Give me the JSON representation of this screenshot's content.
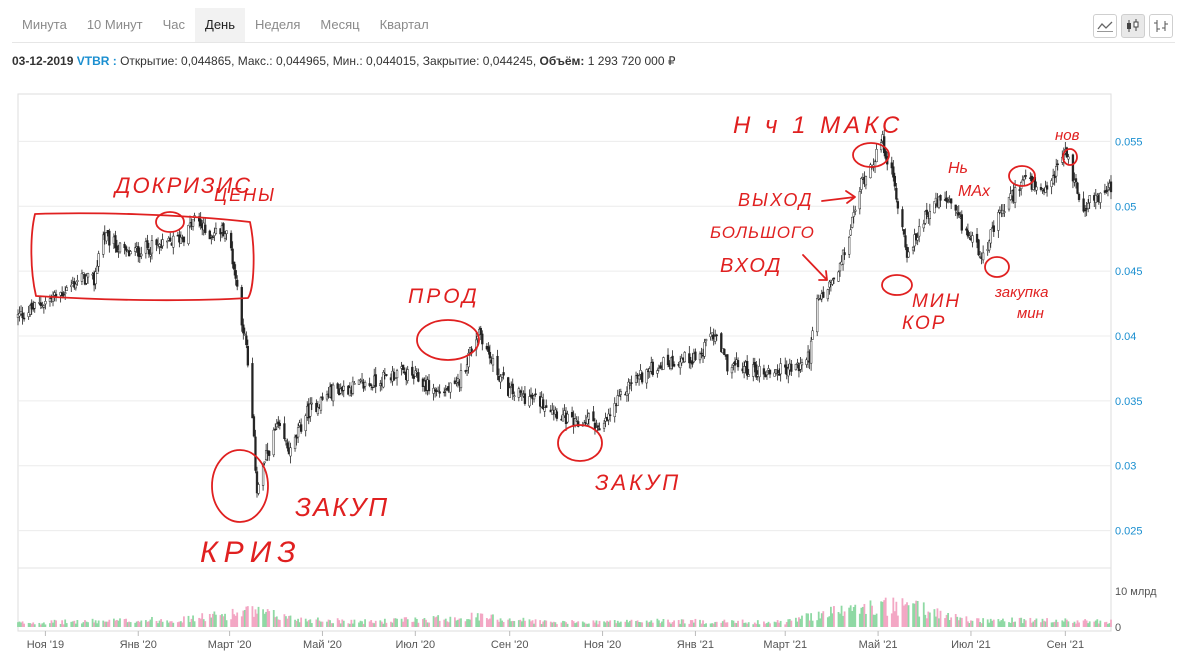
{
  "tabs": [
    "Минута",
    "10 Минут",
    "Час",
    "День",
    "Неделя",
    "Месяц",
    "Квартал"
  ],
  "active_tab": "День",
  "chart_types": [
    "line-chart-icon",
    "candlestick-chart-icon",
    "ohlc-bar-chart-icon"
  ],
  "info": {
    "date": "03-12-2019",
    "ticker": "VTBR :",
    "open_label": "Открытие:",
    "open_value": "0,044865",
    "high_label": "Макс.:",
    "high_value": "0,044965",
    "low_label": "Мин.:",
    "low_value": "0,044015",
    "close_label": "Закрытие:",
    "close_value": "0,044245",
    "volume_label": "Объём:",
    "volume_value": "1 293 720 000 ₽"
  },
  "colors": {
    "candle": "#222222",
    "volume_up": "#8fd9a4",
    "volume_down": "#f3a7c4",
    "annotation": "#e02020",
    "axis_text": "#1b8fd0",
    "grid": "#ececec"
  },
  "chart_data": {
    "type": "candlestick",
    "title": "",
    "xlabel": "",
    "ylabel": "",
    "ylim": [
      0.0225,
      0.0585
    ],
    "y_ticks": [
      "0.025",
      "0.03",
      "0.035",
      "0.04",
      "0.045",
      "0.05",
      "0.055"
    ],
    "x_ticks": [
      "Ноя '19",
      "Янв '20",
      "Март '20",
      "Май '20",
      "Июл '20",
      "Сен '20",
      "Ноя '20",
      "Янв '21",
      "Март '21",
      "Май '21",
      "Июл '21",
      "Сен '21"
    ],
    "x_tick_dates": [
      "2019-11-01",
      "2020-01-01",
      "2020-03-01",
      "2020-05-01",
      "2020-07-01",
      "2020-09-01",
      "2020-11-01",
      "2021-01-01",
      "2021-03-01",
      "2021-05-01",
      "2021-07-01",
      "2021-09-01"
    ],
    "date_range": [
      "2019-10-14",
      "2021-10-01"
    ],
    "volume_axis": {
      "labels": [
        "10 млрд",
        "0"
      ],
      "max": 13
    },
    "price_path": [
      [
        "2019-10-14",
        0.0415
      ],
      [
        "2019-11-10",
        0.0432
      ],
      [
        "2019-11-25",
        0.0445
      ],
      [
        "2019-12-03",
        0.0442
      ],
      [
        "2019-12-08",
        0.0478
      ],
      [
        "2019-12-25",
        0.0463
      ],
      [
        "2020-01-07",
        0.0468
      ],
      [
        "2020-01-17",
        0.0469
      ],
      [
        "2020-02-01",
        0.0478
      ],
      [
        "2020-02-08",
        0.0492
      ],
      [
        "2020-02-15",
        0.0478
      ],
      [
        "2020-02-26",
        0.0482
      ],
      [
        "2020-03-01",
        0.0474
      ],
      [
        "2020-03-05",
        0.0445
      ],
      [
        "2020-03-12",
        0.039
      ],
      [
        "2020-03-16",
        0.0335
      ],
      [
        "2020-03-19",
        0.0282
      ],
      [
        "2020-03-24",
        0.0303
      ],
      [
        "2020-04-01",
        0.033
      ],
      [
        "2020-04-10",
        0.031
      ],
      [
        "2020-04-20",
        0.034
      ],
      [
        "2020-05-08",
        0.0358
      ],
      [
        "2020-06-01",
        0.0363
      ],
      [
        "2020-06-20",
        0.0372
      ],
      [
        "2020-07-01",
        0.0368
      ],
      [
        "2020-07-15",
        0.0357
      ],
      [
        "2020-07-28",
        0.036
      ],
      [
        "2020-08-06",
        0.0388
      ],
      [
        "2020-08-12",
        0.0405
      ],
      [
        "2020-08-20",
        0.038
      ],
      [
        "2020-09-01",
        0.0357
      ],
      [
        "2020-09-25",
        0.0348
      ],
      [
        "2020-10-15",
        0.033
      ],
      [
        "2020-10-25",
        0.0338
      ],
      [
        "2020-10-30",
        0.0325
      ],
      [
        "2020-11-09",
        0.0345
      ],
      [
        "2020-11-20",
        0.0365
      ],
      [
        "2020-12-10",
        0.0379
      ],
      [
        "2021-01-05",
        0.0385
      ],
      [
        "2021-01-12",
        0.0403
      ],
      [
        "2021-01-22",
        0.0378
      ],
      [
        "2021-02-15",
        0.0372
      ],
      [
        "2021-03-10",
        0.0376
      ],
      [
        "2021-03-17",
        0.0385
      ],
      [
        "2021-03-22",
        0.0425
      ],
      [
        "2021-04-05",
        0.0448
      ],
      [
        "2021-04-12",
        0.0478
      ],
      [
        "2021-04-20",
        0.0518
      ],
      [
        "2021-05-04",
        0.055
      ],
      [
        "2021-05-11",
        0.052
      ],
      [
        "2021-05-21",
        0.046
      ],
      [
        "2021-06-01",
        0.0495
      ],
      [
        "2021-06-14",
        0.0506
      ],
      [
        "2021-06-26",
        0.0483
      ],
      [
        "2021-07-09",
        0.0463
      ],
      [
        "2021-07-20",
        0.0493
      ],
      [
        "2021-08-05",
        0.0522
      ],
      [
        "2021-08-18",
        0.0507
      ],
      [
        "2021-09-01",
        0.0543
      ],
      [
        "2021-09-12",
        0.05
      ],
      [
        "2021-10-01",
        0.0514
      ]
    ],
    "volume_path": [
      [
        "2019-10-14",
        1.2
      ],
      [
        "2020-02-01",
        2.2
      ],
      [
        "2020-03-15",
        4.5
      ],
      [
        "2020-04-15",
        2.3
      ],
      [
        "2020-06-01",
        1.5
      ],
      [
        "2020-08-10",
        3.0
      ],
      [
        "2020-09-30",
        1.3
      ],
      [
        "2020-12-01",
        1.7
      ],
      [
        "2021-03-01",
        1.4
      ],
      [
        "2021-03-25",
        4.0
      ],
      [
        "2021-05-04",
        6.0
      ],
      [
        "2021-05-25",
        5.5
      ],
      [
        "2021-07-01",
        2.0
      ],
      [
        "2021-10-01",
        1.6
      ]
    ]
  },
  "annotations": {
    "top_left_line1": "ДОКРИЗИС",
    "top_left_line2": "ЦЕНЫ",
    "crisis": "КРИЗ",
    "buy_crisis": "ЗАКУП",
    "peak_aug": "ПРОД",
    "buy_oct": "ЗАКУП",
    "max_label": "Н ч 1 МАКС",
    "exit_label": "ВЫХОД",
    "big_entry_1": "БОЛЬШОГО",
    "big_entry_2": "ВХОД",
    "min_corr_1": "МИН",
    "min_corr_2": "КОР",
    "new_max_1": "Нь",
    "new_max_2": "МАх",
    "new_small": "нов",
    "buy_min_1": "закупка",
    "buy_min_2": "мин"
  }
}
